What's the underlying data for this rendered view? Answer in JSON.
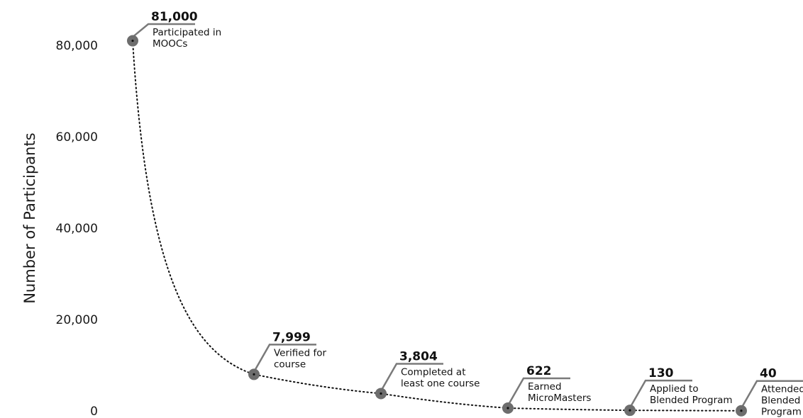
{
  "chart_data": {
    "type": "line",
    "ylabel": "Number of Participants",
    "ylim": [
      0,
      81000
    ],
    "yticks": [
      {
        "value": 0,
        "label": "0"
      },
      {
        "value": 20000,
        "label": "20,000"
      },
      {
        "value": 40000,
        "label": "40,000"
      },
      {
        "value": 60000,
        "label": "60,000"
      },
      {
        "value": 80000,
        "label": "80,000"
      }
    ],
    "grid": false,
    "points": [
      {
        "value": 81000,
        "value_label": "81,000",
        "description": [
          "Participated in",
          "MOOCs"
        ]
      },
      {
        "value": 7999,
        "value_label": "7,999",
        "description": [
          "Verified for",
          "course"
        ]
      },
      {
        "value": 3804,
        "value_label": "3,804",
        "description": [
          "Completed at",
          "least one course"
        ]
      },
      {
        "value": 622,
        "value_label": "622",
        "description": [
          "Earned",
          "MicroMasters"
        ]
      },
      {
        "value": 130,
        "value_label": "130",
        "description": [
          "Applied to",
          "Blended Program"
        ]
      },
      {
        "value": 40,
        "value_label": "40",
        "description": [
          "Attended",
          "Blended",
          "Program"
        ]
      }
    ]
  }
}
